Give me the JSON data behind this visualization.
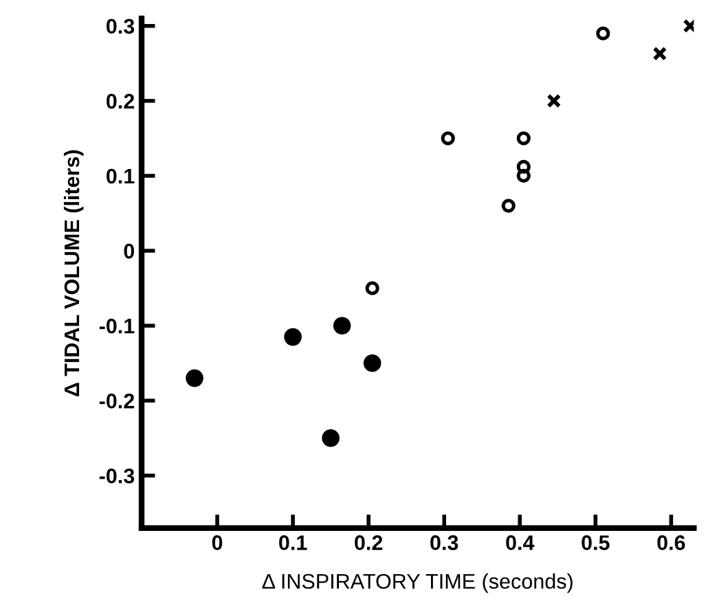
{
  "chart_data": {
    "type": "scatter",
    "xlabel": "Δ INSPIRATORY TIME (seconds)",
    "ylabel": "Δ TIDAL VOLUME (liters)",
    "xlim": [
      -0.1,
      0.63
    ],
    "ylim": [
      -0.37,
      0.31
    ],
    "xticks": [
      0,
      0.1,
      0.2,
      0.3,
      0.4,
      0.5,
      0.6
    ],
    "yticks": [
      0.3,
      0.2,
      0.1,
      0,
      {
        "value": -0.1,
        "label": "-0.1"
      },
      {
        "value": -0.2,
        "label": "-0.2"
      },
      {
        "value": -0.3,
        "label": "-0.3"
      }
    ],
    "grid": false,
    "legend": false,
    "series": [
      {
        "color": "#000000",
        "marker": "circle",
        "x": [
          -0.03,
          0.1,
          0.165,
          0.205,
          0.15
        ],
        "values": [
          -0.17,
          -0.115,
          -0.1,
          -0.15,
          -0.25
        ]
      },
      {
        "color": "#000000",
        "marker": "circle",
        "x": [
          0.205,
          0.305,
          0.385,
          0.405,
          0.405,
          0.405,
          0.51
        ],
        "values": [
          -0.05,
          0.15,
          0.06,
          0.1,
          0.112,
          0.15,
          0.29
        ]
      },
      {
        "color": "#000000",
        "marker": "cross",
        "x": [
          0.445,
          0.585,
          0.625
        ],
        "values": [
          0.2,
          0.263,
          0.3
        ]
      }
    ]
  }
}
